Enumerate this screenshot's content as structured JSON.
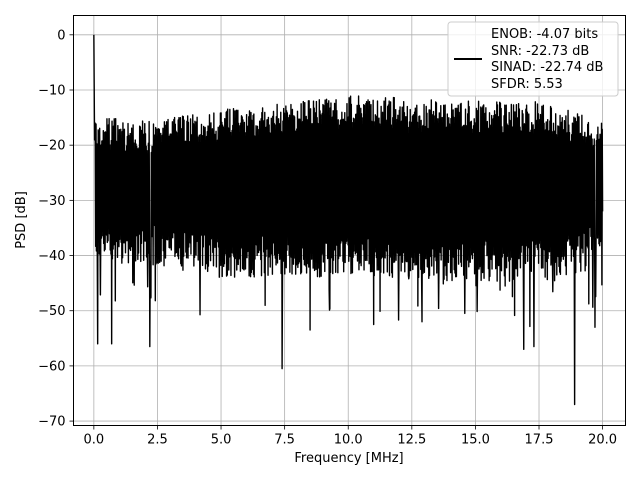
{
  "chart_data": {
    "type": "line",
    "xlabel": "Frequency [MHz]",
    "ylabel": "PSD [dB]",
    "xlim": [
      -0.8,
      20.9
    ],
    "ylim": [
      -70.8,
      3.5
    ],
    "xticks": [
      0.0,
      2.5,
      5.0,
      7.5,
      10.0,
      12.5,
      15.0,
      17.5,
      20.0
    ],
    "xtick_labels": [
      "0.0",
      "2.5",
      "5.0",
      "7.5",
      "10.0",
      "12.5",
      "15.0",
      "17.5",
      "20.0"
    ],
    "yticks": [
      0,
      -10,
      -20,
      -30,
      -40,
      -50,
      -60,
      -70
    ],
    "ytick_labels": [
      "0",
      "−10",
      "−20",
      "−30",
      "−40",
      "−50",
      "−60",
      "−70"
    ],
    "grid": true,
    "legend_position": "top-right",
    "series": [
      {
        "name": "ENOB: -4.07 bits\nSNR: -22.73 dB\nSINAD: -22.74 dB\nSFDR: 5.53",
        "color": "#000000",
        "description_points": {
          "x": [
            0.0,
            0.02,
            0.05,
            0.15,
            0.7,
            2.2,
            7.4,
            8.5,
            11.0,
            12.9,
            16.9,
            17.3,
            18.9,
            19.7,
            20.0
          ],
          "y": [
            0.0,
            -14.0,
            -16.0,
            -56.0,
            -56.0,
            -56.5,
            -60.5,
            -53.5,
            -52.5,
            -52.0,
            -57.0,
            -56.5,
            -67.0,
            -53.0,
            -32.0
          ]
        },
        "trend": {
          "x": [
            0.0,
            2.5,
            5.0,
            7.5,
            10.0,
            12.5,
            15.0,
            17.5,
            20.0
          ],
          "upper": [
            -15.0,
            -15.5,
            -13.5,
            -12.5,
            -11.0,
            -11.5,
            -12.0,
            -12.0,
            -15.5
          ],
          "lower": [
            -41.0,
            -42.0,
            -44.0,
            -44.0,
            -44.0,
            -44.0,
            -45.0,
            -45.0,
            -42.0
          ]
        }
      }
    ],
    "legend_lines": [
      "ENOB: -4.07 bits",
      "SNR: -22.73 dB",
      "SINAD: -22.74 dB",
      "SFDR: 5.53"
    ]
  }
}
